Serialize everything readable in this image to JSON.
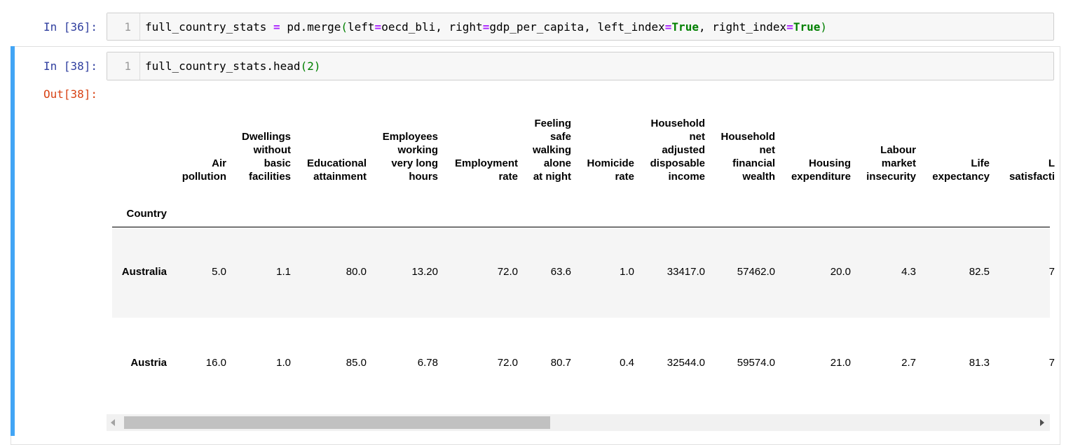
{
  "cell1": {
    "prompt": "In [36]:",
    "line_number": "1",
    "code": {
      "var": "full_country_stats",
      "eq": "=",
      "call": "pd.merge",
      "lparen": "(",
      "arg1_name": "left",
      "eq1": "=",
      "arg1_val": "oecd_bli, ",
      "arg2_name": "right",
      "eq2": "=",
      "arg2_val": "gdp_per_capita, ",
      "arg3_name": "left_index",
      "eq3": "=",
      "arg3_val": "True",
      "sep3": ", ",
      "arg4_name": "right_index",
      "eq4": "=",
      "arg4_val": "True",
      "rparen": ")"
    }
  },
  "cell2": {
    "prompt": "In [38]:",
    "line_number": "1",
    "code": {
      "text": "full_country_stats.head",
      "lparen": "(",
      "arg": "2",
      "rparen": ")"
    },
    "out_prompt": "Out[38]:"
  },
  "table": {
    "index_name": "Country",
    "columns": [
      [
        "Air",
        "pollution"
      ],
      [
        "Dwellings",
        "without",
        "basic",
        "facilities"
      ],
      [
        "Educational",
        "attainment"
      ],
      [
        "Employees",
        "working",
        "very long",
        "hours"
      ],
      [
        "Employment",
        "rate"
      ],
      [
        "Feeling",
        "safe",
        "walking",
        "alone",
        "at night"
      ],
      [
        "Homicide",
        "rate"
      ],
      [
        "Household",
        "net",
        "adjusted",
        "disposable",
        "income"
      ],
      [
        "Household",
        "net",
        "financial",
        "wealth"
      ],
      [
        "Housing",
        "expenditure"
      ],
      [
        "Labour",
        "market",
        "insecurity"
      ],
      [
        "Life",
        "expectancy"
      ],
      [
        "L",
        "satisfacti"
      ]
    ],
    "rows": [
      {
        "country": "Australia",
        "values": [
          "5.0",
          "1.1",
          "80.0",
          "13.20",
          "72.0",
          "63.6",
          "1.0",
          "33417.0",
          "57462.0",
          "20.0",
          "4.3",
          "82.5",
          "7"
        ]
      },
      {
        "country": "Austria",
        "values": [
          "16.0",
          "1.0",
          "85.0",
          "6.78",
          "72.0",
          "80.7",
          "0.4",
          "32544.0",
          "59574.0",
          "21.0",
          "2.7",
          "81.3",
          "7"
        ]
      }
    ]
  },
  "colors": {
    "in_prompt": "#303F9F",
    "out_prompt": "#D84315",
    "selection_bar": "#42A5F5",
    "operator": "#AA22FF",
    "keyword": "#008000"
  }
}
